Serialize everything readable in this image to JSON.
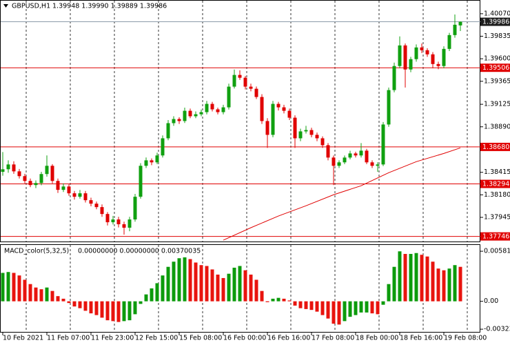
{
  "chart_data": [
    {
      "type": "candlestick",
      "title": "GBPUSD,H1",
      "subtitle": "1.39948 1.39990 1.39889 1.39986",
      "up_color": "#10a010",
      "down_color": "#e00000",
      "ylim": [
        1.37693,
        1.40206
      ],
      "yticks": [
        {
          "value": 1.4007,
          "label": "1.40070"
        },
        1.39835,
        {
          "value": 1.396,
          "label": "1.39600"
        },
        1.39365,
        1.39125,
        {
          "value": 1.3889,
          "label": "1.38890"
        },
        1.38415,
        {
          "value": 1.3818,
          "label": "1.38180"
        },
        1.37945
      ],
      "categories": [
        "10 Feb 2021",
        null,
        null,
        null,
        null,
        null,
        null,
        null,
        "11 Feb 07:00",
        null,
        null,
        null,
        null,
        null,
        null,
        null,
        "11 Feb 23:00",
        null,
        null,
        null,
        null,
        null,
        null,
        null,
        "12 Feb 15:00",
        null,
        null,
        null,
        null,
        null,
        null,
        null,
        "15 Feb 08:00",
        null,
        null,
        null,
        null,
        null,
        null,
        null,
        "16 Feb 00:00",
        null,
        null,
        null,
        null,
        null,
        null,
        null,
        "16 Feb 16:00",
        null,
        null,
        null,
        null,
        null,
        null,
        null,
        "17 Feb 08:00",
        null,
        null,
        null,
        null,
        null,
        null,
        null,
        "18 Feb 00:00",
        null,
        null,
        null,
        null,
        null,
        null,
        null,
        "18 Feb 16:00",
        null,
        null,
        null,
        null,
        null,
        null,
        null,
        "19 Feb 08:00",
        null,
        null,
        null
      ],
      "candles": [
        [
          1.3842,
          1.38626,
          1.3838,
          1.38447
        ],
        [
          1.38447,
          1.3854,
          1.3841,
          1.38497
        ],
        [
          1.38497,
          1.3853,
          1.384,
          1.38425
        ],
        [
          1.38425,
          1.3845,
          1.3835,
          1.38375
        ],
        [
          1.38375,
          1.384,
          1.383,
          1.38325
        ],
        [
          1.38325,
          1.3835,
          1.3826,
          1.38282
        ],
        [
          1.38282,
          1.3833,
          1.3825,
          1.38303
        ],
        [
          1.38303,
          1.3842,
          1.3828,
          1.38397
        ],
        [
          1.38397,
          1.38591,
          1.3837,
          1.38483
        ],
        [
          1.38483,
          1.385,
          1.383,
          1.38325
        ],
        [
          1.38325,
          1.3835,
          1.382,
          1.38232
        ],
        [
          1.38232,
          1.383,
          1.3821,
          1.38267
        ],
        [
          1.38267,
          1.3829,
          1.3817,
          1.38196
        ],
        [
          1.38196,
          1.3822,
          1.3813,
          1.3816
        ],
        [
          1.3816,
          1.3823,
          1.3814,
          1.38196
        ],
        [
          1.38196,
          1.3822,
          1.381,
          1.38124
        ],
        [
          1.38124,
          1.3815,
          1.3806,
          1.38088
        ],
        [
          1.38088,
          1.3811,
          1.3803,
          1.38052
        ],
        [
          1.38052,
          1.3808,
          1.3795,
          1.3798
        ],
        [
          1.3798,
          1.38,
          1.3786,
          1.37894
        ],
        [
          1.37894,
          1.3796,
          1.3787,
          1.37923
        ],
        [
          1.37923,
          1.3795,
          1.3784,
          1.37873
        ],
        [
          1.37873,
          1.379,
          1.37765,
          1.37837
        ],
        [
          1.37837,
          1.3795,
          1.378,
          1.37923
        ],
        [
          1.37923,
          1.3819,
          1.379,
          1.3816
        ],
        [
          1.3816,
          1.3851,
          1.3814,
          1.38483
        ],
        [
          1.38483,
          1.3857,
          1.3846,
          1.3854
        ],
        [
          1.3854,
          1.3856,
          1.3849,
          1.38519
        ],
        [
          1.38519,
          1.3862,
          1.385,
          1.38591
        ],
        [
          1.38591,
          1.388,
          1.3857,
          1.3877
        ],
        [
          1.3877,
          1.3896,
          1.3875,
          1.38928
        ],
        [
          1.38928,
          1.39,
          1.389,
          1.38971
        ],
        [
          1.38971,
          1.3899,
          1.3892,
          1.3895
        ],
        [
          1.3895,
          1.3909,
          1.3893,
          1.39057
        ],
        [
          1.39057,
          1.3908,
          1.3898,
          1.39
        ],
        [
          1.39,
          1.3905,
          1.3898,
          1.39021
        ],
        [
          1.39021,
          1.3907,
          1.39,
          1.39043
        ],
        [
          1.39043,
          1.3916,
          1.3902,
          1.39129
        ],
        [
          1.39129,
          1.3915,
          1.3905,
          1.39072
        ],
        [
          1.39072,
          1.3909,
          1.3902,
          1.39043
        ],
        [
          1.39043,
          1.3912,
          1.3902,
          1.39093
        ],
        [
          1.39093,
          1.3934,
          1.3907,
          1.39309
        ],
        [
          1.39309,
          1.39488,
          1.3929,
          1.39431
        ],
        [
          1.39431,
          1.3948,
          1.3938,
          1.39402
        ],
        [
          1.39402,
          1.3942,
          1.3928,
          1.39309
        ],
        [
          1.39309,
          1.3934,
          1.3926,
          1.39287
        ],
        [
          1.39287,
          1.3931,
          1.3918,
          1.39201
        ],
        [
          1.39201,
          1.3923,
          1.3892,
          1.3895
        ],
        [
          1.3895,
          1.3898,
          1.3867,
          1.38806
        ],
        [
          1.38806,
          1.3916,
          1.3878,
          1.39129
        ],
        [
          1.39129,
          1.3915,
          1.3906,
          1.39093
        ],
        [
          1.39093,
          1.3912,
          1.3903,
          1.39057
        ],
        [
          1.39057,
          1.3908,
          1.3896,
          1.38985
        ],
        [
          1.38985,
          1.3901,
          1.3867,
          1.3877
        ],
        [
          1.3877,
          1.3887,
          1.3874,
          1.38842
        ],
        [
          1.38842,
          1.389,
          1.3882,
          1.38856
        ],
        [
          1.38856,
          1.3888,
          1.3878,
          1.38806
        ],
        [
          1.38806,
          1.3883,
          1.3874,
          1.3877
        ],
        [
          1.3877,
          1.3879,
          1.3867,
          1.38698
        ],
        [
          1.38698,
          1.3872,
          1.3854,
          1.38569
        ],
        [
          1.38569,
          1.3859,
          1.38282,
          1.38483
        ],
        [
          1.38483,
          1.3854,
          1.3846,
          1.38519
        ],
        [
          1.38519,
          1.3859,
          1.385,
          1.38569
        ],
        [
          1.38569,
          1.3864,
          1.3855,
          1.38612
        ],
        [
          1.38612,
          1.3863,
          1.3857,
          1.38591
        ],
        [
          1.38591,
          1.3872,
          1.3857,
          1.38641
        ],
        [
          1.38641,
          1.3866,
          1.385,
          1.38519
        ],
        [
          1.38519,
          1.3854,
          1.3846,
          1.38483
        ],
        [
          1.38483,
          1.3852,
          1.3842,
          1.38497
        ],
        [
          1.38497,
          1.3894,
          1.3848,
          1.38914
        ],
        [
          1.38914,
          1.393,
          1.3889,
          1.39273
        ],
        [
          1.39273,
          1.3956,
          1.3925,
          1.39524
        ],
        [
          1.39524,
          1.39833,
          1.395,
          1.39739
        ],
        [
          1.39739,
          1.3976,
          1.393,
          1.39488
        ],
        [
          1.39488,
          1.3962,
          1.3946,
          1.39596
        ],
        [
          1.39596,
          1.3975,
          1.3957,
          1.39718
        ],
        [
          1.39718,
          1.3976,
          1.3966,
          1.39689
        ],
        [
          1.39689,
          1.3971,
          1.3962,
          1.39646
        ],
        [
          1.39646,
          1.3967,
          1.395,
          1.39545
        ],
        [
          1.39545,
          1.3957,
          1.3949,
          1.39524
        ],
        [
          1.39524,
          1.3973,
          1.395,
          1.39703
        ],
        [
          1.39703,
          1.3987,
          1.3968,
          1.39847
        ],
        [
          1.39847,
          1.40062,
          1.3982,
          1.39955
        ],
        [
          1.39948,
          1.3999,
          1.39889,
          1.39986
        ]
      ],
      "ma": {
        "color": "#e00000",
        "x": [
          40,
          45,
          50,
          55,
          60,
          65,
          70,
          75,
          80,
          83
        ],
        "values": [
          1.37707,
          1.37837,
          1.37959,
          1.38066,
          1.38181,
          1.38275,
          1.38411,
          1.38526,
          1.38612,
          1.3867
        ]
      },
      "levels": [
        {
          "value": 1.39506,
          "color": "#e00000"
        },
        {
          "value": 1.3868,
          "label": "1.38680",
          "color": "#e00000"
        },
        {
          "value": 1.38294,
          "color": "#e00000"
        },
        {
          "value": 1.37746,
          "color": "#e00000"
        }
      ],
      "last": {
        "value": 1.39986,
        "color": "#8a9aa8"
      }
    },
    {
      "type": "macd",
      "title": "MACD_color(5,32,5)",
      "subtitle": "0.00000000 0.00000000 0.00370035",
      "up_color": "#0c9b0c",
      "down_color": "#e8140e",
      "ylim": [
        -0.00355,
        0.00654
      ],
      "yticks": [
        0.0058113,
        {
          "value": 0,
          "label": "0.00"
        },
        -0.003237
      ],
      "values": [
        0.0033,
        0.0034,
        0.0033,
        0.003,
        0.0025,
        0.002,
        0.0016,
        0.0014,
        0.0016,
        0.0012,
        0.0006,
        0.0003,
        -0.0002,
        -0.0006,
        -0.0008,
        -0.0011,
        -0.0014,
        -0.0016,
        -0.0019,
        -0.0022,
        -0.0023,
        -0.0024,
        -0.0023,
        -0.0022,
        -0.0015,
        -0.0003,
        0.0008,
        0.0015,
        0.0021,
        0.003,
        0.004,
        0.0046,
        0.005,
        0.0051,
        0.0049,
        0.0045,
        0.0042,
        0.0041,
        0.0037,
        0.0031,
        0.0027,
        0.0032,
        0.0039,
        0.0041,
        0.0036,
        0.0031,
        0.0025,
        0.0012,
        -0.0001,
        0.0003,
        0.0004,
        0.0003,
        0.0001,
        -0.0005,
        -0.0008,
        -0.0009,
        -0.001,
        -0.0012,
        -0.0016,
        -0.002,
        -0.0026,
        -0.0027,
        -0.0023,
        -0.0018,
        -0.0016,
        -0.0013,
        -0.0013,
        -0.0014,
        -0.0015,
        -0.0004,
        0.002,
        0.004,
        0.0058,
        0.0055,
        0.0055,
        0.0056,
        0.0054,
        0.0052,
        0.0046,
        0.0038,
        0.0036,
        0.0038,
        0.0042,
        0.004
      ]
    }
  ]
}
